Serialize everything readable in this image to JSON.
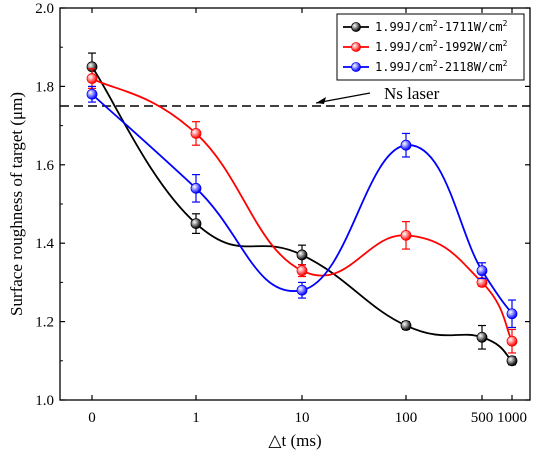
{
  "chart_data": {
    "type": "line",
    "xlabel": "△t (ms)",
    "ylabel": "Surface roughness of target (μm)",
    "ylim": [
      1.0,
      2.0
    ],
    "yticks": [
      "1.0",
      "1.2",
      "1.4",
      "1.6",
      "1.8",
      "2.0"
    ],
    "categories": [
      "0",
      "1",
      "10",
      "100",
      "500",
      "1000"
    ],
    "x_scale": "log-like categorical (0 at origin, 500 and 1000 close together)",
    "grid": false,
    "legend_position": "top-right",
    "series": [
      {
        "name": "1.99J/cm²-1711W/cm²",
        "name_parts": [
          "1.99J/cm",
          "2",
          "-1711W/cm",
          "2"
        ],
        "color": "#000000",
        "values": [
          1.85,
          1.45,
          1.37,
          1.19,
          1.16,
          1.1
        ],
        "errors": [
          0.035,
          0.025,
          0.025,
          0.01,
          0.03,
          0.01
        ]
      },
      {
        "name": "1.99J/cm²-1992W/cm²",
        "name_parts": [
          "1.99J/cm",
          "2",
          "-1992W/cm",
          "2"
        ],
        "color": "#ff0000",
        "values": [
          1.82,
          1.68,
          1.33,
          1.42,
          1.3,
          1.15
        ],
        "errors": [
          0.025,
          0.03,
          0.015,
          0.035,
          0.01,
          0.03
        ]
      },
      {
        "name": "1.99J/cm²-2118W/cm²",
        "name_parts": [
          "1.99J/cm",
          "2",
          "-2118W/cm",
          "2"
        ],
        "color": "#0000ff",
        "values": [
          1.78,
          1.54,
          1.28,
          1.65,
          1.33,
          1.22
        ],
        "errors": [
          0.02,
          0.035,
          0.02,
          0.03,
          0.02,
          0.035
        ]
      }
    ],
    "reference_line": {
      "value": 1.75,
      "label": "Ns laser",
      "style": "dashed",
      "color": "#000000"
    }
  }
}
